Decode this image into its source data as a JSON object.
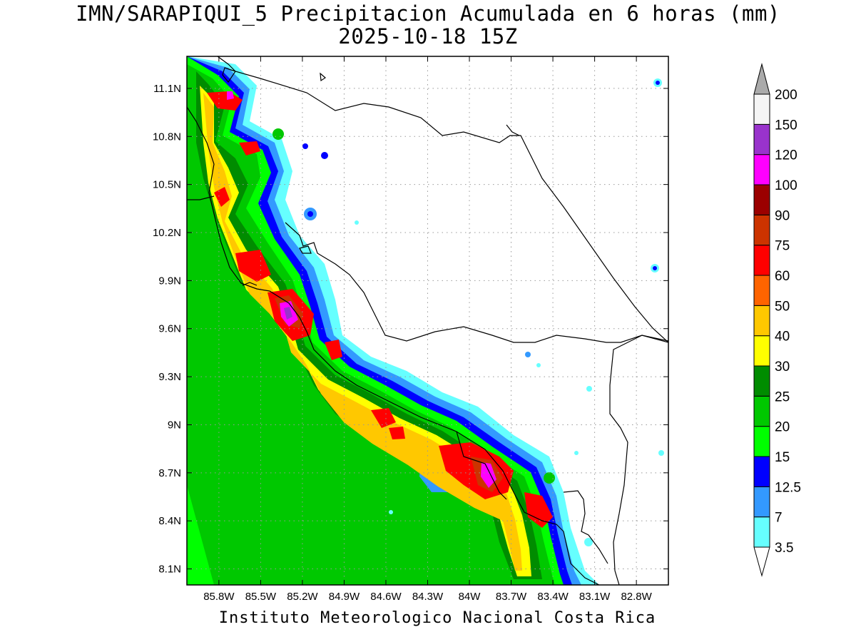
{
  "header": {
    "title": "IMN/SARAPIQUI_5 Precipitacion Acumulada en 6 horas (mm)",
    "subtitle": "2025-10-18 15Z"
  },
  "footer": {
    "credit": "Instituto Meteorologico Nacional Costa Rica"
  },
  "map": {
    "lon_range": [
      -86.03,
      -82.57
    ],
    "lat_range": [
      8.0,
      11.3
    ],
    "lon_ticks": [
      {
        "value": -85.8,
        "label": "85.8W"
      },
      {
        "value": -85.5,
        "label": "85.5W"
      },
      {
        "value": -85.2,
        "label": "85.2W"
      },
      {
        "value": -84.9,
        "label": "84.9W"
      },
      {
        "value": -84.6,
        "label": "84.6W"
      },
      {
        "value": -84.3,
        "label": "84.3W"
      },
      {
        "value": -84.0,
        "label": "84W"
      },
      {
        "value": -83.7,
        "label": "83.7W"
      },
      {
        "value": -83.4,
        "label": "83.4W"
      },
      {
        "value": -83.1,
        "label": "83.1W"
      },
      {
        "value": -82.8,
        "label": "82.8W"
      }
    ],
    "lat_ticks": [
      {
        "value": 11.1,
        "label": "11.1N"
      },
      {
        "value": 10.8,
        "label": "10.8N"
      },
      {
        "value": 10.5,
        "label": "10.5N"
      },
      {
        "value": 10.2,
        "label": "10.2N"
      },
      {
        "value": 9.9,
        "label": "9.9N"
      },
      {
        "value": 9.6,
        "label": "9.6N"
      },
      {
        "value": 9.3,
        "label": "9.3N"
      },
      {
        "value": 9.0,
        "label": "9N"
      },
      {
        "value": 8.7,
        "label": "8.7N"
      },
      {
        "value": 8.4,
        "label": "8.4N"
      },
      {
        "value": 8.1,
        "label": "8.1N"
      }
    ],
    "grid": true
  },
  "legend": {
    "placement": "right",
    "levels": [
      {
        "label": "3.5",
        "color": "#66ffff"
      },
      {
        "label": "7",
        "color": "#3399ff"
      },
      {
        "label": "12.5",
        "color": "#0000ff"
      },
      {
        "label": "15",
        "color": "#00ff00"
      },
      {
        "label": "20",
        "color": "#00c800"
      },
      {
        "label": "25",
        "color": "#008c00"
      },
      {
        "label": "30",
        "color": "#ffff00"
      },
      {
        "label": "40",
        "color": "#ffc800"
      },
      {
        "label": "50",
        "color": "#ff6400"
      },
      {
        "label": "60",
        "color": "#ff0000"
      },
      {
        "label": "75",
        "color": "#cc3300"
      },
      {
        "label": "90",
        "color": "#9b0000"
      },
      {
        "label": "100",
        "color": "#ff00ff"
      },
      {
        "label": "120",
        "color": "#9933cc"
      },
      {
        "label": "150",
        "color": "#f5f5f5"
      },
      {
        "label": "200",
        "color": "#aaaaaa"
      }
    ]
  }
}
